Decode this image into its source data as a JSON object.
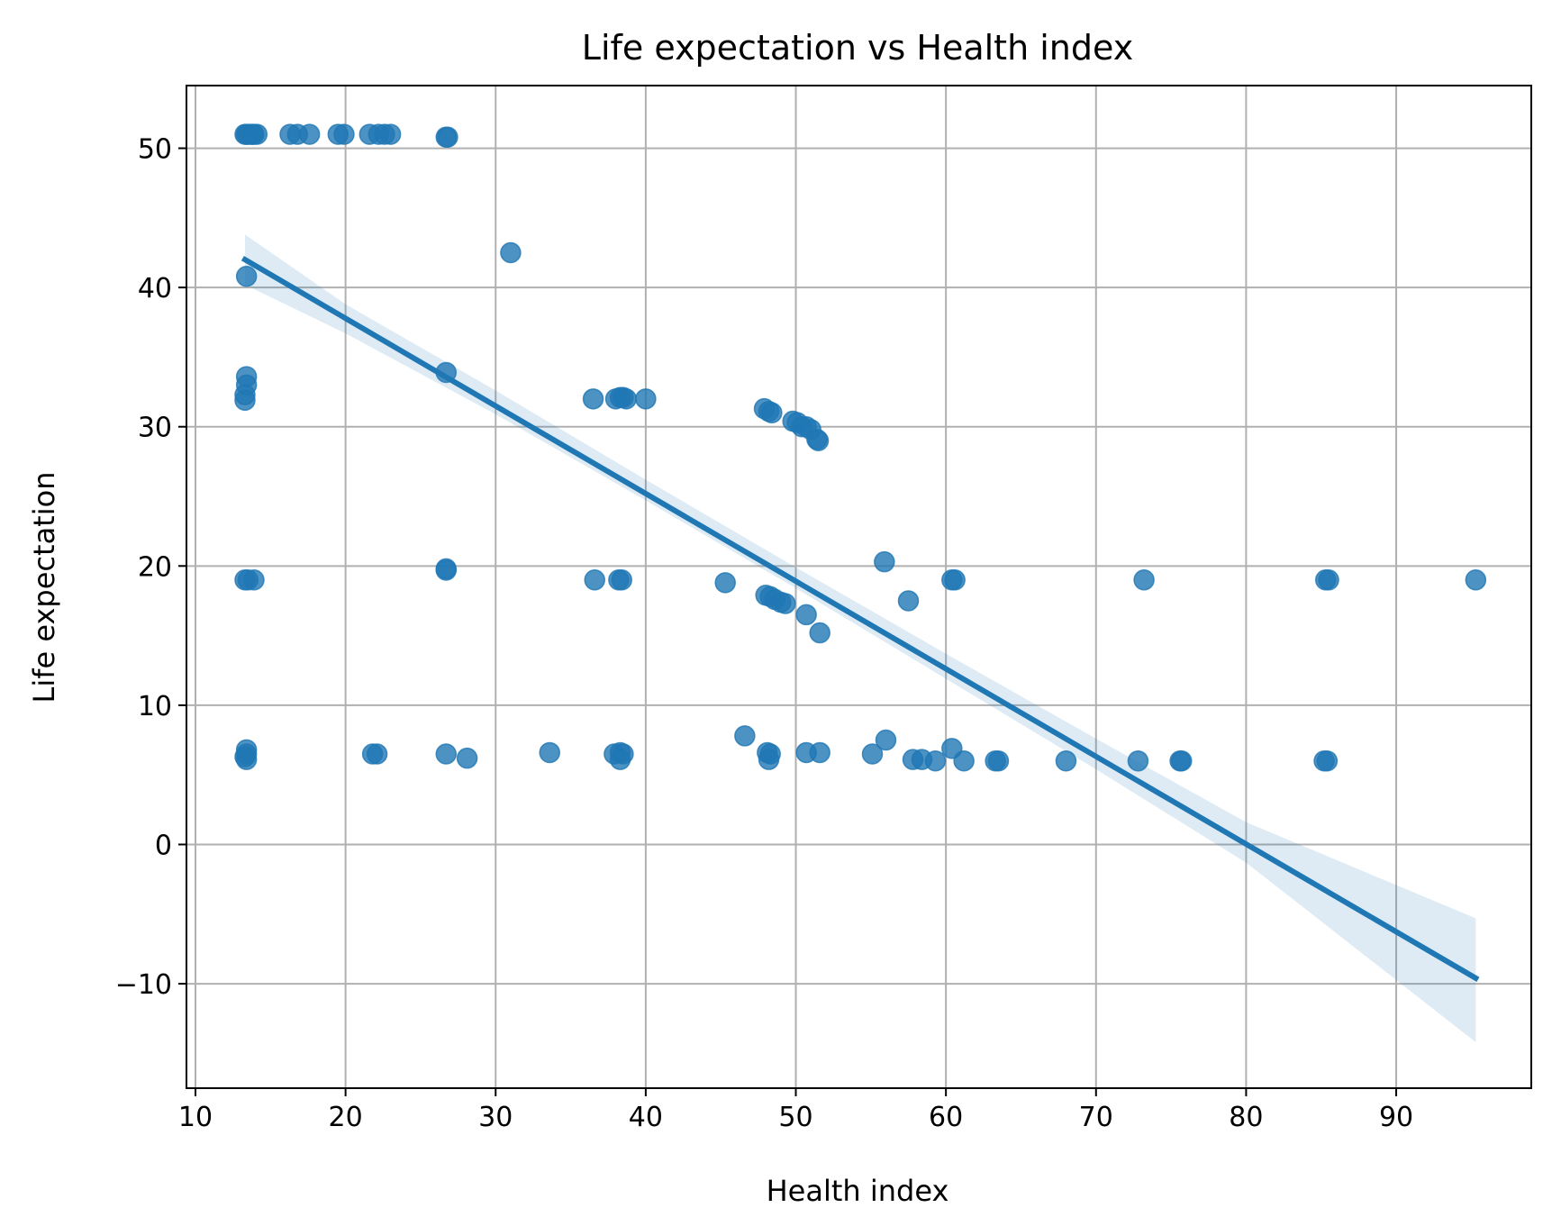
{
  "chart_data": {
    "type": "scatter",
    "title": "Life expectation vs Health index",
    "xlabel": "Health index",
    "ylabel": "Life expectation",
    "xlim": [
      9.4,
      99
    ],
    "ylim": [
      -17.5,
      54.5
    ],
    "xticks": [
      10,
      20,
      30,
      40,
      50,
      60,
      70,
      80,
      90
    ],
    "yticks": [
      -10,
      0,
      10,
      20,
      30,
      40,
      50
    ],
    "xtick_labels": [
      "10",
      "20",
      "30",
      "40",
      "50",
      "60",
      "70",
      "80",
      "90"
    ],
    "ytick_labels": [
      "−10",
      "0",
      "10",
      "20",
      "30",
      "40",
      "50"
    ],
    "grid": true,
    "point_color": "#1f77b4",
    "line_color": "#1f77b4",
    "band_color": "#1f77b4",
    "series": [
      {
        "kind": "points",
        "x": [
          13.3,
          13.5,
          13.7,
          13.9,
          14.1,
          13.4,
          13.8,
          16.3,
          16.8,
          17.6,
          19.5,
          19.9,
          21.6,
          22.2,
          22.6,
          23.0,
          26.7,
          26.8,
          31.0,
          13.4,
          13.4,
          13.4,
          13.3,
          13.3,
          26.7,
          36.5,
          38.0,
          38.3,
          38.5,
          38.7,
          40.0,
          47.9,
          48.2,
          48.4,
          49.8,
          50.1,
          50.4,
          50.7,
          51.0,
          51.4,
          51.5,
          13.3,
          13.5,
          13.9,
          26.7,
          26.7,
          36.6,
          38.2,
          38.4,
          45.3,
          55.9,
          60.4,
          60.6,
          73.2,
          85.3,
          85.5,
          95.3,
          48.0,
          48.3,
          48.6,
          49.0,
          49.3,
          50.7,
          51.6,
          57.5,
          13.4,
          13.4,
          13.3,
          13.4,
          21.8,
          22.1,
          26.7,
          28.1,
          33.6,
          37.9,
          38.3,
          38.5,
          38.3,
          46.6,
          48.1,
          48.3,
          48.2,
          50.7,
          51.6,
          55.1,
          56.0,
          57.8,
          58.4,
          59.3,
          60.4,
          61.2,
          63.3,
          63.5,
          68.0,
          72.8,
          75.6,
          75.7,
          85.2,
          85.4
        ],
        "y": [
          51.0,
          51.0,
          51.0,
          51.0,
          51.0,
          51.0,
          51.0,
          51.0,
          51.0,
          51.0,
          51.0,
          51.0,
          51.0,
          51.0,
          51.0,
          51.0,
          50.8,
          50.8,
          42.5,
          40.8,
          33.6,
          33.0,
          32.3,
          31.9,
          33.9,
          32.0,
          32.0,
          32.1,
          32.1,
          32.0,
          32.0,
          31.3,
          31.1,
          31.0,
          30.4,
          30.3,
          30.0,
          30.0,
          29.8,
          29.1,
          29.0,
          19.0,
          19.0,
          19.0,
          19.8,
          19.7,
          19.0,
          19.0,
          19.0,
          18.8,
          20.3,
          19.0,
          19.0,
          19.0,
          19.0,
          19.0,
          19.0,
          17.9,
          17.8,
          17.6,
          17.4,
          17.3,
          16.5,
          15.2,
          17.5,
          6.8,
          6.5,
          6.3,
          6.1,
          6.5,
          6.5,
          6.5,
          6.2,
          6.6,
          6.5,
          6.6,
          6.5,
          6.1,
          7.8,
          6.6,
          6.5,
          6.1,
          6.6,
          6.6,
          6.5,
          7.5,
          6.1,
          6.1,
          6.0,
          6.9,
          6.0,
          6.0,
          6.0,
          6.0,
          6.0,
          6.0,
          6.0,
          6.0,
          6.0
        ]
      },
      {
        "kind": "regression",
        "x": [
          13.3,
          95.3
        ],
        "y": [
          42.0,
          -9.6
        ]
      },
      {
        "kind": "confidence_band",
        "x": [
          13.3,
          20,
          30,
          40,
          50,
          60,
          70,
          80,
          95.3
        ],
        "upper": [
          43.8,
          38.8,
          32.6,
          26.2,
          19.9,
          13.7,
          7.6,
          1.6,
          -5.3
        ],
        "lower": [
          40.2,
          36.7,
          30.9,
          24.7,
          18.4,
          11.9,
          5.4,
          -1.3,
          -14.2
        ]
      }
    ]
  }
}
